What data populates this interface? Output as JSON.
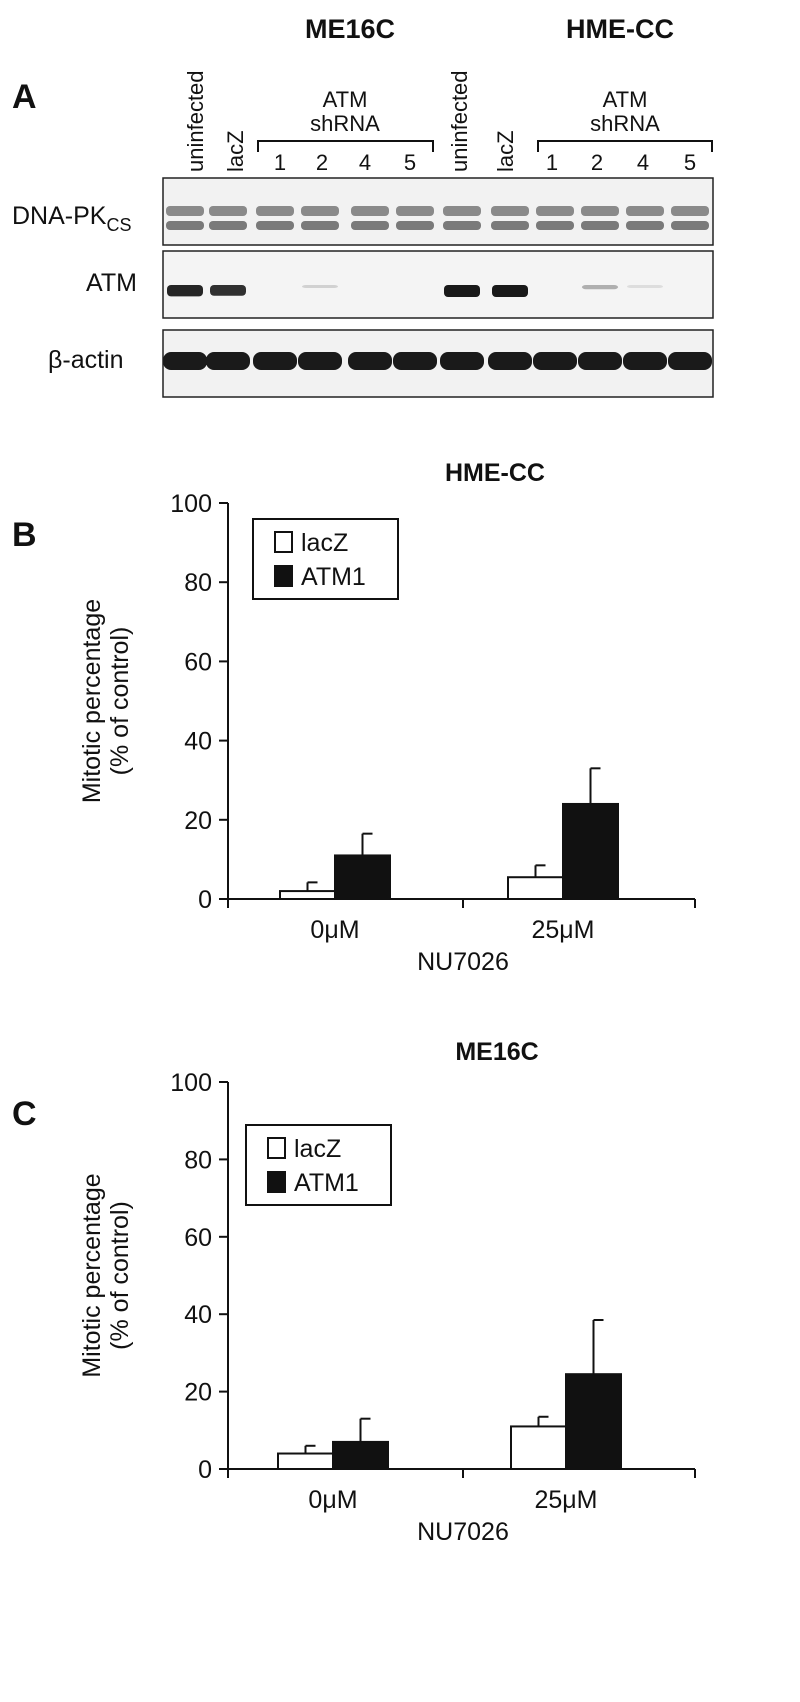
{
  "panelA": {
    "letter": "A",
    "cell_lines": [
      "ME16C",
      "HME-CC"
    ],
    "lane_labels": [
      "uninfected",
      "lacZ",
      "uninfected",
      "lacZ"
    ],
    "group_label_line1": "ATM",
    "group_label_line2": "shRNA",
    "shrna_numbers": [
      "1",
      "2",
      "4",
      "5",
      "1",
      "2",
      "4",
      "5"
    ],
    "row_labels": {
      "dnapk_main": "DNA-PK",
      "dnapk_sub": "CS",
      "atm": "ATM",
      "actin": "β-actin"
    },
    "blot_intensity": {
      "atm": [
        0.95,
        0.9,
        0.0,
        0.2,
        0.0,
        0.0,
        1.0,
        1.0,
        0.0,
        0.35,
        0.15,
        0.0
      ]
    }
  },
  "chart_data": [
    {
      "type": "bar",
      "panel": "B",
      "title": "HME-CC",
      "categories": [
        "0μM",
        "25μM"
      ],
      "series": [
        {
          "name": "lacZ",
          "values": [
            2,
            5.5
          ],
          "errors": [
            2.2,
            3
          ]
        },
        {
          "name": "ATM1",
          "values": [
            11,
            24
          ],
          "errors": [
            5.5,
            9
          ]
        }
      ],
      "xlabel": "NU7026",
      "ylabel_line1": "Mitotic percentage",
      "ylabel_line2": "(% of control)",
      "ylim": [
        0,
        100
      ],
      "yticks": [
        "0",
        "20",
        "40",
        "60",
        "80",
        "100"
      ],
      "legend_position": "top-left",
      "colors": {
        "lacZ": "#ffffff",
        "ATM1": "#111111"
      }
    },
    {
      "type": "bar",
      "panel": "C",
      "title": "ME16C",
      "categories": [
        "0μM",
        "25μM"
      ],
      "series": [
        {
          "name": "lacZ",
          "values": [
            4,
            11
          ],
          "errors": [
            2,
            2.5
          ]
        },
        {
          "name": "ATM1",
          "values": [
            7,
            24.5
          ],
          "errors": [
            6,
            14
          ]
        }
      ],
      "xlabel": "NU7026",
      "ylabel_line1": "Mitotic percentage",
      "ylabel_line2": "(% of control)",
      "ylim": [
        0,
        100
      ],
      "yticks": [
        "0",
        "20",
        "40",
        "60",
        "80",
        "100"
      ],
      "legend_position": "top-left",
      "colors": {
        "lacZ": "#ffffff",
        "ATM1": "#111111"
      }
    }
  ]
}
